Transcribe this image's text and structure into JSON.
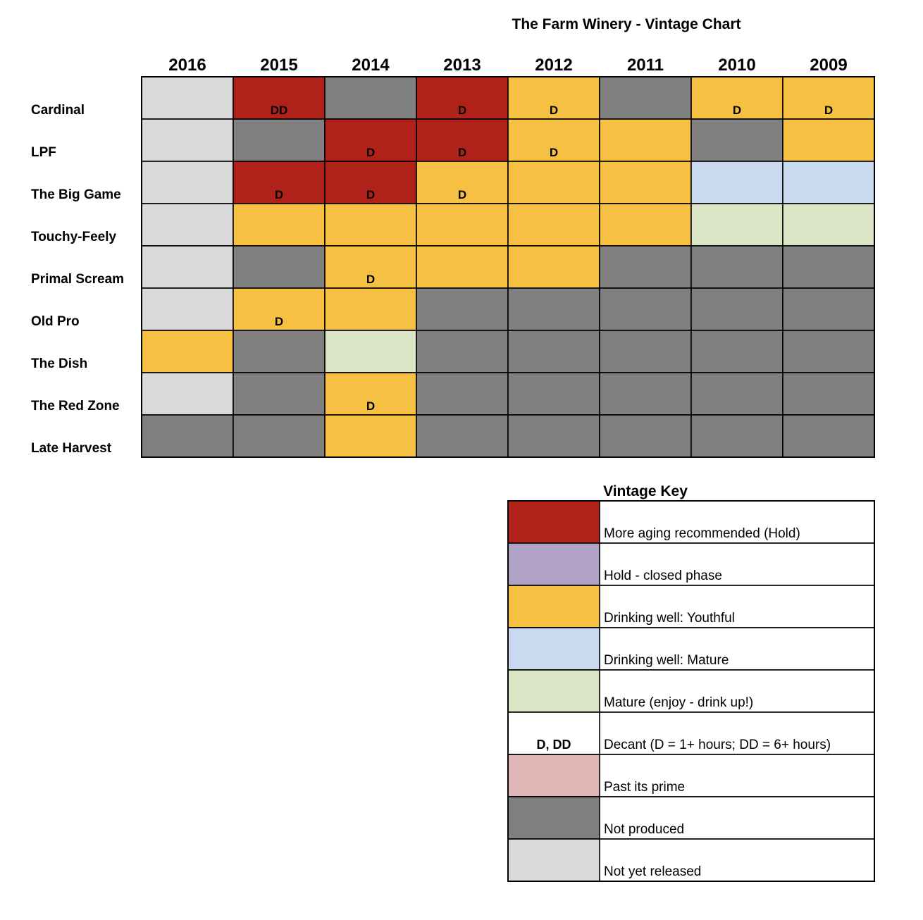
{
  "chart_data": {
    "type": "table",
    "title": "The Farm Winery - Vintage Chart",
    "years": [
      "2016",
      "2015",
      "2014",
      "2013",
      "2012",
      "2011",
      "2010",
      "2009"
    ],
    "wines": [
      {
        "name": "Cardinal",
        "cells": [
          {
            "status": "not_yet_released",
            "decant": ""
          },
          {
            "status": "hold",
            "decant": "DD"
          },
          {
            "status": "not_produced",
            "decant": ""
          },
          {
            "status": "hold",
            "decant": "D"
          },
          {
            "status": "youthful",
            "decant": "D"
          },
          {
            "status": "not_produced",
            "decant": ""
          },
          {
            "status": "youthful",
            "decant": "D"
          },
          {
            "status": "youthful",
            "decant": "D"
          }
        ]
      },
      {
        "name": "LPF",
        "cells": [
          {
            "status": "not_yet_released",
            "decant": ""
          },
          {
            "status": "not_produced",
            "decant": ""
          },
          {
            "status": "hold",
            "decant": "D"
          },
          {
            "status": "hold",
            "decant": "D"
          },
          {
            "status": "youthful",
            "decant": "D"
          },
          {
            "status": "youthful",
            "decant": ""
          },
          {
            "status": "not_produced",
            "decant": ""
          },
          {
            "status": "youthful",
            "decant": ""
          }
        ]
      },
      {
        "name": "The Big Game",
        "cells": [
          {
            "status": "not_yet_released",
            "decant": ""
          },
          {
            "status": "hold",
            "decant": "D"
          },
          {
            "status": "hold",
            "decant": "D"
          },
          {
            "status": "youthful",
            "decant": "D"
          },
          {
            "status": "youthful",
            "decant": ""
          },
          {
            "status": "youthful",
            "decant": ""
          },
          {
            "status": "mature_drinking",
            "decant": ""
          },
          {
            "status": "mature_drinking",
            "decant": ""
          }
        ]
      },
      {
        "name": "Touchy-Feely",
        "cells": [
          {
            "status": "not_yet_released",
            "decant": ""
          },
          {
            "status": "youthful",
            "decant": ""
          },
          {
            "status": "youthful",
            "decant": ""
          },
          {
            "status": "youthful",
            "decant": ""
          },
          {
            "status": "youthful",
            "decant": ""
          },
          {
            "status": "youthful",
            "decant": ""
          },
          {
            "status": "mature_enjoy",
            "decant": ""
          },
          {
            "status": "mature_enjoy",
            "decant": ""
          }
        ]
      },
      {
        "name": "Primal Scream",
        "cells": [
          {
            "status": "not_yet_released",
            "decant": ""
          },
          {
            "status": "not_produced",
            "decant": ""
          },
          {
            "status": "youthful",
            "decant": "D"
          },
          {
            "status": "youthful",
            "decant": ""
          },
          {
            "status": "youthful",
            "decant": ""
          },
          {
            "status": "not_produced",
            "decant": ""
          },
          {
            "status": "not_produced",
            "decant": ""
          },
          {
            "status": "not_produced",
            "decant": ""
          }
        ]
      },
      {
        "name": "Old Pro",
        "cells": [
          {
            "status": "not_yet_released",
            "decant": ""
          },
          {
            "status": "youthful",
            "decant": "D"
          },
          {
            "status": "youthful",
            "decant": ""
          },
          {
            "status": "not_produced",
            "decant": ""
          },
          {
            "status": "not_produced",
            "decant": ""
          },
          {
            "status": "not_produced",
            "decant": ""
          },
          {
            "status": "not_produced",
            "decant": ""
          },
          {
            "status": "not_produced",
            "decant": ""
          }
        ]
      },
      {
        "name": "The Dish",
        "cells": [
          {
            "status": "youthful",
            "decant": ""
          },
          {
            "status": "not_produced",
            "decant": ""
          },
          {
            "status": "mature_enjoy",
            "decant": ""
          },
          {
            "status": "not_produced",
            "decant": ""
          },
          {
            "status": "not_produced",
            "decant": ""
          },
          {
            "status": "not_produced",
            "decant": ""
          },
          {
            "status": "not_produced",
            "decant": ""
          },
          {
            "status": "not_produced",
            "decant": ""
          }
        ]
      },
      {
        "name": "The Red Zone",
        "cells": [
          {
            "status": "not_yet_released",
            "decant": ""
          },
          {
            "status": "not_produced",
            "decant": ""
          },
          {
            "status": "youthful",
            "decant": "D"
          },
          {
            "status": "not_produced",
            "decant": ""
          },
          {
            "status": "not_produced",
            "decant": ""
          },
          {
            "status": "not_produced",
            "decant": ""
          },
          {
            "status": "not_produced",
            "decant": ""
          },
          {
            "status": "not_produced",
            "decant": ""
          }
        ]
      },
      {
        "name": "Late Harvest",
        "cells": [
          {
            "status": "not_produced",
            "decant": ""
          },
          {
            "status": "not_produced",
            "decant": ""
          },
          {
            "status": "youthful",
            "decant": ""
          },
          {
            "status": "not_produced",
            "decant": ""
          },
          {
            "status": "not_produced",
            "decant": ""
          },
          {
            "status": "not_produced",
            "decant": ""
          },
          {
            "status": "not_produced",
            "decant": ""
          },
          {
            "status": "not_produced",
            "decant": ""
          }
        ]
      }
    ],
    "key": {
      "title": "Vintage Key",
      "items": [
        {
          "status": "hold",
          "label": "More aging recommended (Hold)",
          "color": "#b0211a",
          "swatch_text": ""
        },
        {
          "status": "closed",
          "label": "Hold - closed phase",
          "color": "#b0a1c7",
          "swatch_text": ""
        },
        {
          "status": "youthful",
          "label": "Drinking well: Youthful",
          "color": "#f6c143",
          "swatch_text": ""
        },
        {
          "status": "mature_drinking",
          "label": "Drinking well: Mature",
          "color": "#c9d9ef",
          "swatch_text": ""
        },
        {
          "status": "mature_enjoy",
          "label": "Mature (enjoy - drink up!)",
          "color": "#dbe5c5",
          "swatch_text": ""
        },
        {
          "status": "decant",
          "label": "Decant (D = 1+ hours; DD = 6+ hours)",
          "color": "#ffffff",
          "swatch_text": "D, DD"
        },
        {
          "status": "past_prime",
          "label": "Past its prime",
          "color": "#e0b7b6",
          "swatch_text": ""
        },
        {
          "status": "not_produced",
          "label": "Not produced",
          "color": "#808080",
          "swatch_text": ""
        },
        {
          "status": "not_yet_released",
          "label": "Not yet released",
          "color": "#d9d9d9",
          "swatch_text": ""
        }
      ]
    }
  }
}
